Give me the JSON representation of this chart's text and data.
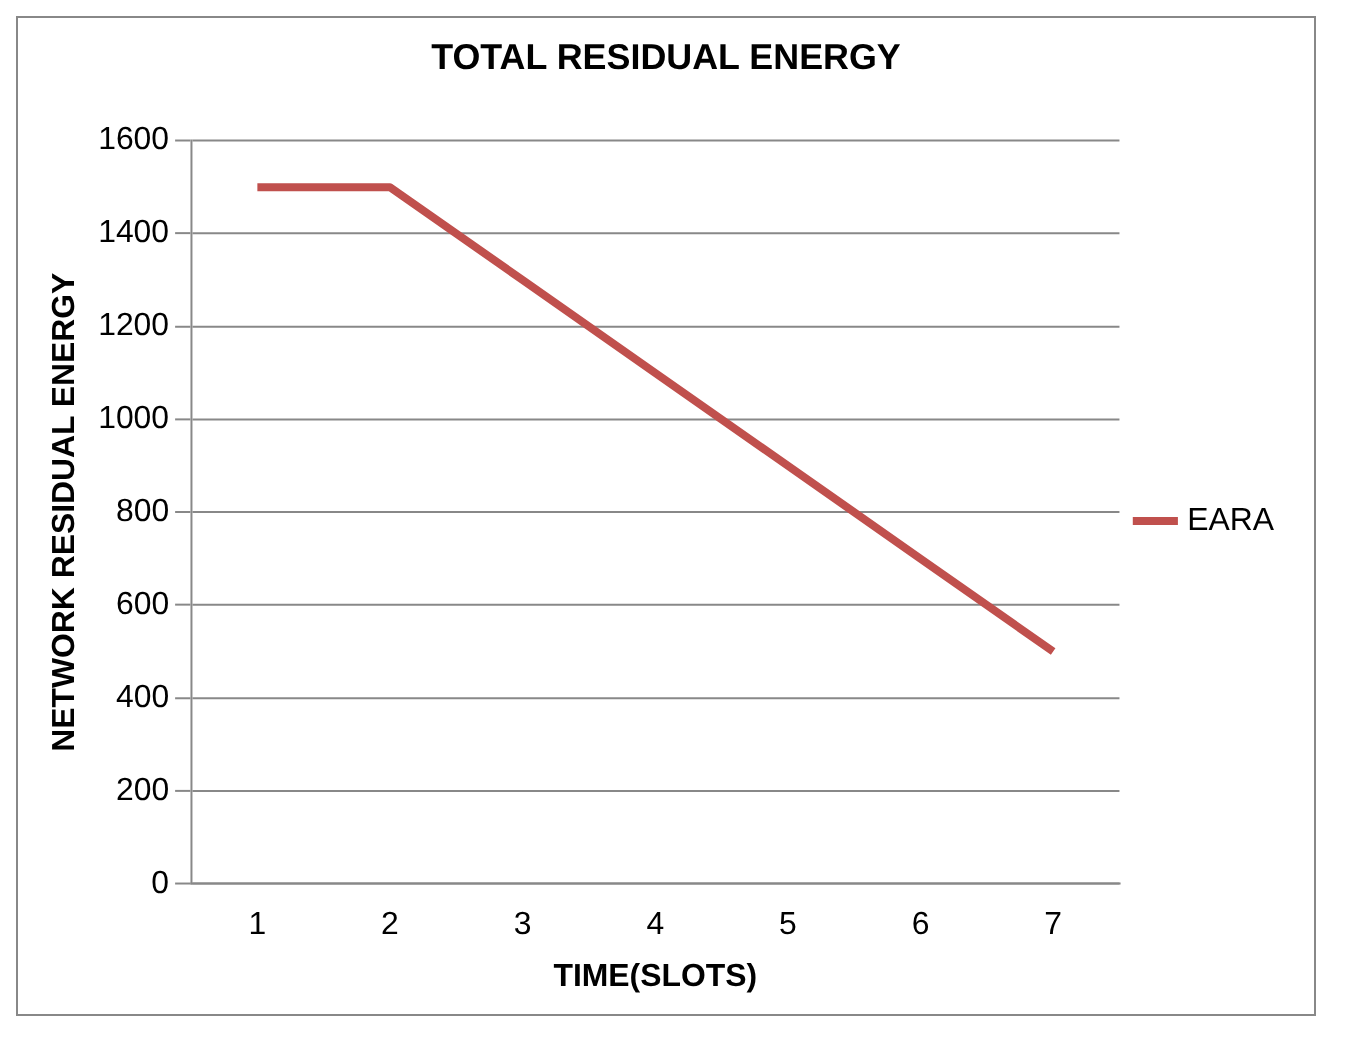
{
  "chart_data": {
    "type": "line",
    "title": "TOTAL RESIDUAL ENERGY",
    "xlabel": "TIME(SLOTS)",
    "ylabel": "NETWORK RESIDUAL ENERGY",
    "categories": [
      "1",
      "2",
      "3",
      "4",
      "5",
      "6",
      "7"
    ],
    "series": [
      {
        "name": "EARA",
        "color": "#c0504d",
        "values": [
          1500,
          1500,
          1300,
          1100,
          900,
          700,
          500
        ]
      }
    ],
    "ylim": [
      0,
      1600
    ],
    "yticks": [
      0,
      200,
      400,
      600,
      800,
      1000,
      1200,
      1400,
      1600
    ],
    "grid": "y",
    "legend": "right",
    "marker": "none",
    "line_style": "solid"
  }
}
